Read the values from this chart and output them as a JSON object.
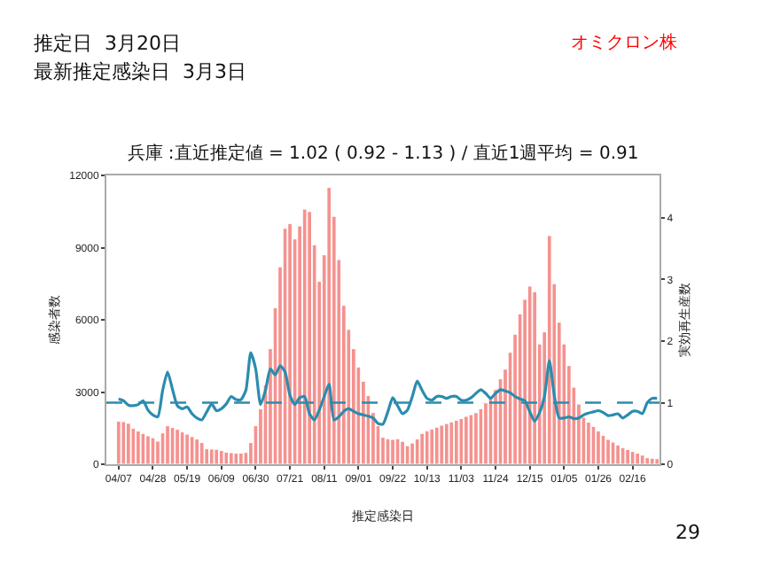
{
  "chart_data": {
    "type": "bar",
    "title": "兵庫 :直近推定値 = 1.02 ( 0.92 - 1.13 ) / 直近1週平均 = 0.91",
    "xlabel": "推定感染日",
    "ylabel": "感染者数",
    "y2label": "実効再生産数",
    "annotations": [
      "推定日  3月20日",
      "最新推定感染日  3月3日",
      "オミクロン株",
      "29"
    ],
    "categories": [
      "04/07",
      null,
      null,
      null,
      null,
      null,
      null,
      "04/28",
      null,
      null,
      null,
      null,
      null,
      null,
      "05/19",
      null,
      null,
      null,
      null,
      null,
      null,
      "06/09",
      null,
      null,
      null,
      null,
      null,
      null,
      "06/30",
      null,
      null,
      null,
      null,
      null,
      null,
      "07/21",
      null,
      null,
      null,
      null,
      null,
      null,
      "08/11",
      null,
      null,
      null,
      null,
      null,
      null,
      "09/01",
      null,
      null,
      null,
      null,
      null,
      null,
      "09/22",
      null,
      null,
      null,
      null,
      null,
      null,
      "10/13",
      null,
      null,
      null,
      null,
      null,
      null,
      "11/03",
      null,
      null,
      null,
      null,
      null,
      null,
      "11/24",
      null,
      null,
      null,
      null,
      null,
      null,
      "12/15",
      null,
      null,
      null,
      null,
      null,
      null,
      "01/05",
      null,
      null,
      null,
      null,
      null,
      null,
      "01/26",
      null,
      null,
      null,
      null,
      null,
      null,
      "02/16",
      null,
      null,
      null,
      null,
      null
    ],
    "series": [
      {
        "color": "#f4928f",
        "values": [
          1790,
          1770,
          1700,
          1500,
          1380,
          1280,
          1180,
          1100,
          960,
          1300,
          1600,
          1530,
          1450,
          1340,
          1250,
          1150,
          1050,
          900,
          640,
          630,
          620,
          570,
          500,
          480,
          460,
          460,
          490,
          900,
          1600,
          2300,
          3300,
          4800,
          6500,
          8200,
          9800,
          10000,
          9360,
          9900,
          10600,
          10500,
          9120,
          7600,
          8700,
          11500,
          10300,
          8500,
          6600,
          5600,
          4800,
          4040,
          3450,
          2850,
          2150,
          1600,
          1120,
          1060,
          1030,
          1060,
          950,
          770,
          880,
          1050,
          1280,
          1390,
          1460,
          1540,
          1620,
          1690,
          1760,
          1830,
          1900,
          1990,
          2060,
          2140,
          2300,
          2550,
          2800,
          3100,
          3550,
          3950,
          4650,
          5400,
          6250,
          6850,
          7400,
          7170,
          5000,
          5500,
          9500,
          7500,
          5900,
          5000,
          4100,
          3200,
          2500,
          1950,
          1750,
          1570,
          1380,
          1200,
          1030,
          920,
          800,
          690,
          610,
          530,
          460,
          380,
          270,
          250,
          230
        ]
      },
      {
        "type": "line",
        "axis": "y2",
        "color": "#2b8cae",
        "values": [
          1.06,
          1.03,
          0.96,
          0.95,
          0.97,
          1.03,
          0.88,
          0.8,
          0.77,
          1.2,
          1.5,
          1.22,
          0.95,
          0.9,
          0.93,
          0.82,
          0.75,
          0.72,
          0.85,
          0.98,
          0.87,
          0.9,
          0.98,
          1.1,
          1.05,
          1.05,
          1.2,
          1.81,
          1.55,
          0.97,
          1.2,
          1.55,
          1.45,
          1.6,
          1.5,
          1.12,
          0.97,
          1.08,
          1.1,
          0.82,
          0.72,
          0.88,
          1.1,
          1.3,
          0.72,
          0.77,
          0.86,
          0.9,
          0.86,
          0.82,
          0.8,
          0.78,
          0.75,
          0.66,
          0.65,
          0.85,
          1.08,
          0.95,
          0.82,
          0.88,
          1.1,
          1.35,
          1.2,
          1.07,
          1.04,
          1.1,
          1.1,
          1.07,
          1.1,
          1.1,
          1.04,
          1.04,
          1.08,
          1.15,
          1.21,
          1.15,
          1.07,
          1.15,
          1.21,
          1.19,
          1.16,
          1.1,
          1.06,
          1.03,
          0.85,
          0.7,
          0.84,
          1.1,
          1.68,
          1.12,
          0.75,
          0.75,
          0.77,
          0.74,
          0.75,
          0.8,
          0.83,
          0.85,
          0.87,
          0.84,
          0.79,
          0.8,
          0.82,
          0.75,
          0.8,
          0.86,
          0.86,
          0.82,
          1.0,
          1.07,
          1.07
        ]
      }
    ],
    "ylim": [
      0,
      12000
    ],
    "yticks": [
      0,
      3000,
      6000,
      9000,
      12000
    ],
    "y2lim": [
      0,
      4.69
    ],
    "y2ticks": [
      0,
      1,
      2,
      3,
      4
    ],
    "ref_lines": [
      {
        "axis": "y2",
        "value": 1,
        "color": "#2b8cae",
        "line_style": "dashed"
      }
    ]
  }
}
